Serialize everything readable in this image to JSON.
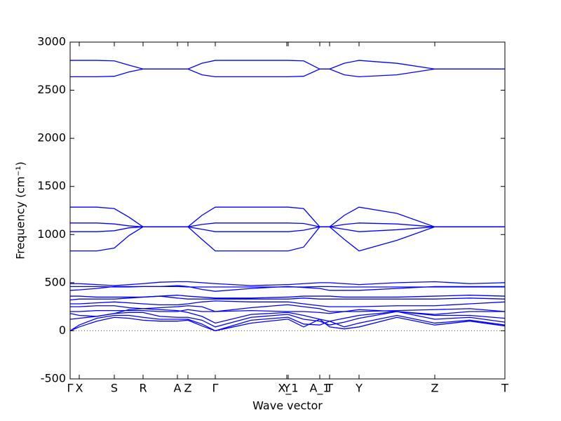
{
  "chart_data": {
    "type": "line",
    "xlabel": "Wave vector",
    "ylabel": "Frequency (cm⁻¹)",
    "color": "#0000ff",
    "xlim": [
      0,
      620
    ],
    "ylim": [
      -500,
      3000
    ],
    "xticks": [
      {
        "value": 0,
        "label": "Γ"
      },
      {
        "value": 13,
        "label": "X"
      },
      {
        "value": 63,
        "label": "S"
      },
      {
        "value": 104,
        "label": "R"
      },
      {
        "value": 153,
        "label": "A"
      },
      {
        "value": 168,
        "label": "Z"
      },
      {
        "value": 207,
        "label": "Γ"
      },
      {
        "value": 309,
        "label": "Y"
      },
      {
        "value": 311,
        "label": "X_1"
      },
      {
        "value": 356,
        "label": "A_1"
      },
      {
        "value": 370,
        "label": "T"
      },
      {
        "value": 412,
        "label": "Y"
      },
      {
        "value": 520,
        "label": "Z"
      },
      {
        "value": 620,
        "label": "T"
      }
    ],
    "yticks": [
      -500,
      0,
      500,
      1000,
      1500,
      2000,
      2500,
      3000
    ],
    "reference_line": 0,
    "x": [
      0,
      13,
      38,
      63,
      84,
      104,
      128,
      153,
      168,
      188,
      207,
      258,
      309,
      311,
      333,
      356,
      370,
      391,
      412,
      466,
      520,
      570,
      620
    ],
    "series": [
      {
        "values": [
          2810,
          2810,
          2810,
          2805,
          2760,
          2720,
          2720,
          2720,
          2720,
          2780,
          2810,
          2810,
          2810,
          2810,
          2805,
          2720,
          2720,
          2780,
          2810,
          2780,
          2720,
          2720,
          2720
        ]
      },
      {
        "values": [
          2640,
          2640,
          2640,
          2645,
          2690,
          2720,
          2720,
          2720,
          2720,
          2660,
          2640,
          2640,
          2640,
          2640,
          2645,
          2720,
          2720,
          2660,
          2640,
          2660,
          2720,
          2720,
          2720
        ]
      },
      {
        "values": [
          1285,
          1285,
          1285,
          1270,
          1180,
          1080,
          1080,
          1080,
          1080,
          1200,
          1285,
          1285,
          1285,
          1285,
          1270,
          1080,
          1080,
          1200,
          1285,
          1220,
          1080,
          1080,
          1080
        ]
      },
      {
        "values": [
          1120,
          1120,
          1120,
          1110,
          1090,
          1080,
          1080,
          1080,
          1080,
          1105,
          1120,
          1120,
          1120,
          1120,
          1115,
          1080,
          1080,
          1105,
          1120,
          1110,
          1080,
          1080,
          1080
        ]
      },
      {
        "values": [
          1030,
          1030,
          1030,
          1040,
          1070,
          1080,
          1080,
          1080,
          1080,
          1055,
          1030,
          1030,
          1030,
          1030,
          1045,
          1080,
          1080,
          1055,
          1030,
          1050,
          1080,
          1080,
          1080
        ]
      },
      {
        "values": [
          830,
          830,
          830,
          860,
          990,
          1080,
          1080,
          1080,
          1080,
          950,
          830,
          830,
          830,
          830,
          870,
          1080,
          1080,
          950,
          830,
          940,
          1080,
          1080,
          1080
        ]
      },
      {
        "values": [
          490,
          490,
          480,
          470,
          480,
          490,
          505,
          510,
          510,
          500,
          490,
          470,
          480,
          480,
          490,
          500,
          500,
          490,
          480,
          500,
          510,
          490,
          500
        ]
      },
      {
        "values": [
          460,
          460,
          460,
          455,
          455,
          460,
          460,
          460,
          455,
          455,
          455,
          455,
          455,
          455,
          455,
          460,
          460,
          455,
          455,
          455,
          455,
          455,
          455
        ]
      },
      {
        "values": [
          420,
          425,
          440,
          460,
          460,
          460,
          460,
          470,
          460,
          430,
          410,
          440,
          460,
          460,
          450,
          440,
          420,
          420,
          420,
          440,
          460,
          460,
          460
        ]
      },
      {
        "values": [
          360,
          360,
          350,
          350,
          350,
          350,
          360,
          370,
          360,
          350,
          340,
          340,
          350,
          350,
          360,
          360,
          360,
          350,
          350,
          350,
          360,
          370,
          360
        ]
      },
      {
        "values": [
          320,
          330,
          330,
          330,
          340,
          350,
          360,
          340,
          330,
          330,
          330,
          330,
          330,
          330,
          340,
          330,
          330,
          330,
          330,
          330,
          330,
          340,
          330
        ]
      },
      {
        "values": [
          280,
          280,
          290,
          300,
          290,
          280,
          270,
          270,
          280,
          300,
          310,
          300,
          300,
          300,
          280,
          260,
          250,
          250,
          250,
          260,
          260,
          280,
          300
        ]
      },
      {
        "values": [
          250,
          250,
          260,
          260,
          240,
          230,
          240,
          250,
          260,
          250,
          200,
          240,
          270,
          270,
          250,
          230,
          200,
          200,
          200,
          210,
          220,
          230,
          200
        ]
      },
      {
        "values": [
          200,
          200,
          210,
          210,
          210,
          210,
          200,
          200,
          220,
          200,
          200,
          210,
          200,
          200,
          200,
          190,
          180,
          200,
          220,
          200,
          170,
          200,
          200
        ]
      },
      {
        "values": [
          180,
          160,
          150,
          180,
          220,
          230,
          220,
          210,
          190,
          150,
          80,
          170,
          190,
          190,
          160,
          120,
          100,
          130,
          160,
          200,
          160,
          160,
          130
        ]
      },
      {
        "values": [
          120,
          130,
          150,
          180,
          190,
          190,
          150,
          140,
          140,
          110,
          40,
          140,
          170,
          170,
          120,
          100,
          60,
          90,
          130,
          200,
          120,
          140,
          90
        ]
      },
      {
        "values": [
          0,
          60,
          130,
          160,
          160,
          140,
          120,
          120,
          120,
          70,
          0,
          110,
          140,
          140,
          70,
          60,
          100,
          40,
          80,
          160,
          80,
          110,
          60
        ]
      },
      {
        "values": [
          0,
          40,
          100,
          140,
          130,
          110,
          100,
          100,
          110,
          50,
          0,
          80,
          120,
          120,
          40,
          120,
          40,
          20,
          40,
          140,
          60,
          100,
          50
        ]
      }
    ]
  }
}
